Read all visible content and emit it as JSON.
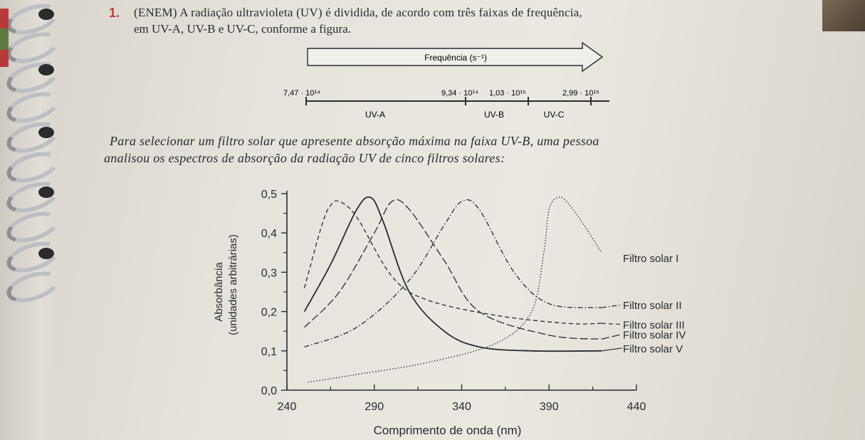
{
  "question": {
    "number": "1.",
    "line1": "(ENEM) A radiação ultravioleta (UV) é dividida, de acordo com três faixas de frequência,",
    "line2": "em UV-A, UV-B e UV-C, conforme a figura.",
    "para1": "Para selecionar um filtro solar que apresente absorção máxima na faixa UV-B, uma pessoa",
    "para2": "analisou os espectros de absorção da radiação UV de cinco filtros solares:"
  },
  "frequency_figure": {
    "arrow_label": "Frequência (s⁻¹)",
    "tick_labels": [
      "7,47 · 10¹⁴",
      "9,34 · 10¹⁴",
      "1,03 · 10¹⁵",
      "2,99 · 10¹⁵"
    ],
    "band_labels": [
      "UV-A",
      "UV-B",
      "UV-C"
    ]
  },
  "chart_data": {
    "type": "line",
    "xlabel": "Comprimento de onda (nm)",
    "ylabel": [
      "Absorbância",
      "(unidades arbitrárias)"
    ],
    "xlim": [
      240,
      440
    ],
    "ylim": [
      0.0,
      0.5
    ],
    "xticks": [
      "240",
      "290",
      "340",
      "390",
      "440"
    ],
    "yticks": [
      "0,0",
      "0,1",
      "0,2",
      "0,3",
      "0,4",
      "0,5"
    ],
    "series": [
      {
        "name": "Filtro solar I",
        "style": "dotted",
        "x": [
          252,
          280,
          320,
          360,
          380,
          387,
          390,
          395,
          400,
          410,
          420
        ],
        "y": [
          0.02,
          0.04,
          0.07,
          0.12,
          0.2,
          0.35,
          0.46,
          0.49,
          0.48,
          0.42,
          0.35
        ]
      },
      {
        "name": "Filtro solar II",
        "style": "dash-dot",
        "x": [
          250,
          280,
          310,
          330,
          340,
          350,
          370,
          390,
          420
        ],
        "y": [
          0.11,
          0.16,
          0.28,
          0.42,
          0.48,
          0.46,
          0.3,
          0.22,
          0.21
        ]
      },
      {
        "name": "Filtro solar III",
        "style": "dashed",
        "x": [
          250,
          260,
          265,
          270,
          280,
          300,
          320,
          360,
          400,
          420
        ],
        "y": [
          0.26,
          0.42,
          0.47,
          0.48,
          0.44,
          0.29,
          0.23,
          0.19,
          0.17,
          0.17
        ]
      },
      {
        "name": "Filtro solar IV",
        "style": "long-dash",
        "x": [
          250,
          270,
          290,
          300,
          310,
          330,
          350,
          390,
          420
        ],
        "y": [
          0.16,
          0.25,
          0.4,
          0.48,
          0.46,
          0.33,
          0.2,
          0.14,
          0.13
        ]
      },
      {
        "name": "Filtro solar V",
        "style": "solid",
        "x": [
          250,
          265,
          280,
          288,
          295,
          310,
          330,
          350,
          380,
          420
        ],
        "y": [
          0.2,
          0.32,
          0.46,
          0.49,
          0.43,
          0.25,
          0.15,
          0.11,
          0.1,
          0.1
        ]
      }
    ]
  }
}
